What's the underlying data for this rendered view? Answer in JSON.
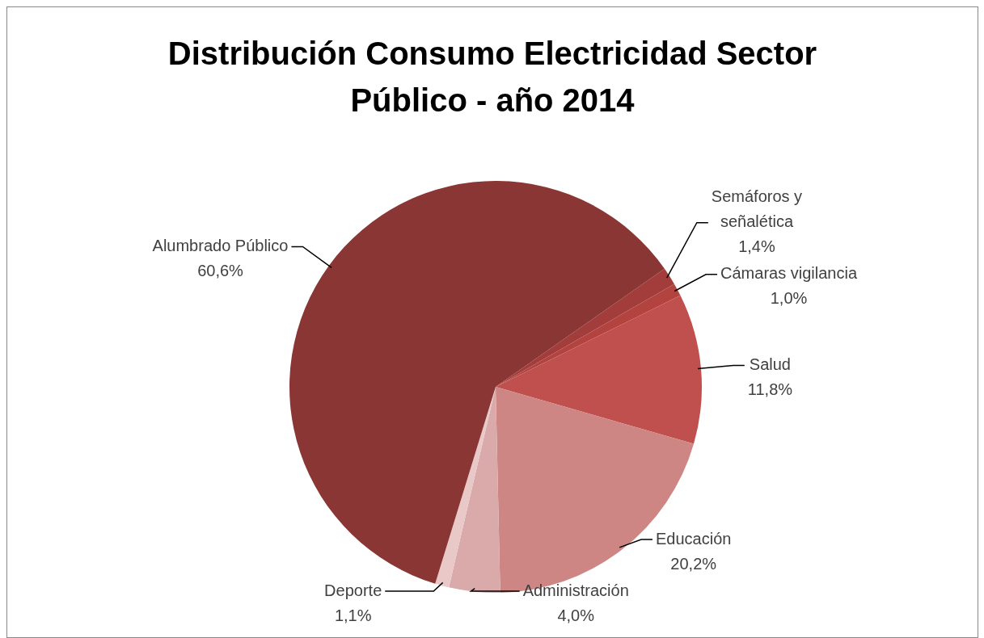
{
  "chart_data": {
    "type": "pie",
    "title": "Distribución Consumo Electricidad Sector Público - año 2014",
    "categories": [
      "Semáforos y señalética",
      "Cámaras vigilancia",
      "Salud",
      "Educación",
      "Administración",
      "Deporte",
      "Alumbrado Público"
    ],
    "values": [
      1.4,
      1.0,
      11.8,
      20.2,
      4.0,
      1.1,
      60.6
    ],
    "colors": [
      "#a33d3b",
      "#b3433f",
      "#c0504d",
      "#ce8684",
      "#d9aaa9",
      "#e8c9c8",
      "#8a3634"
    ],
    "value_labels": [
      "1,4%",
      "1,0%",
      "11,8%",
      "20,2%",
      "4,0%",
      "1,1%",
      "60,6%"
    ],
    "legend": false
  }
}
